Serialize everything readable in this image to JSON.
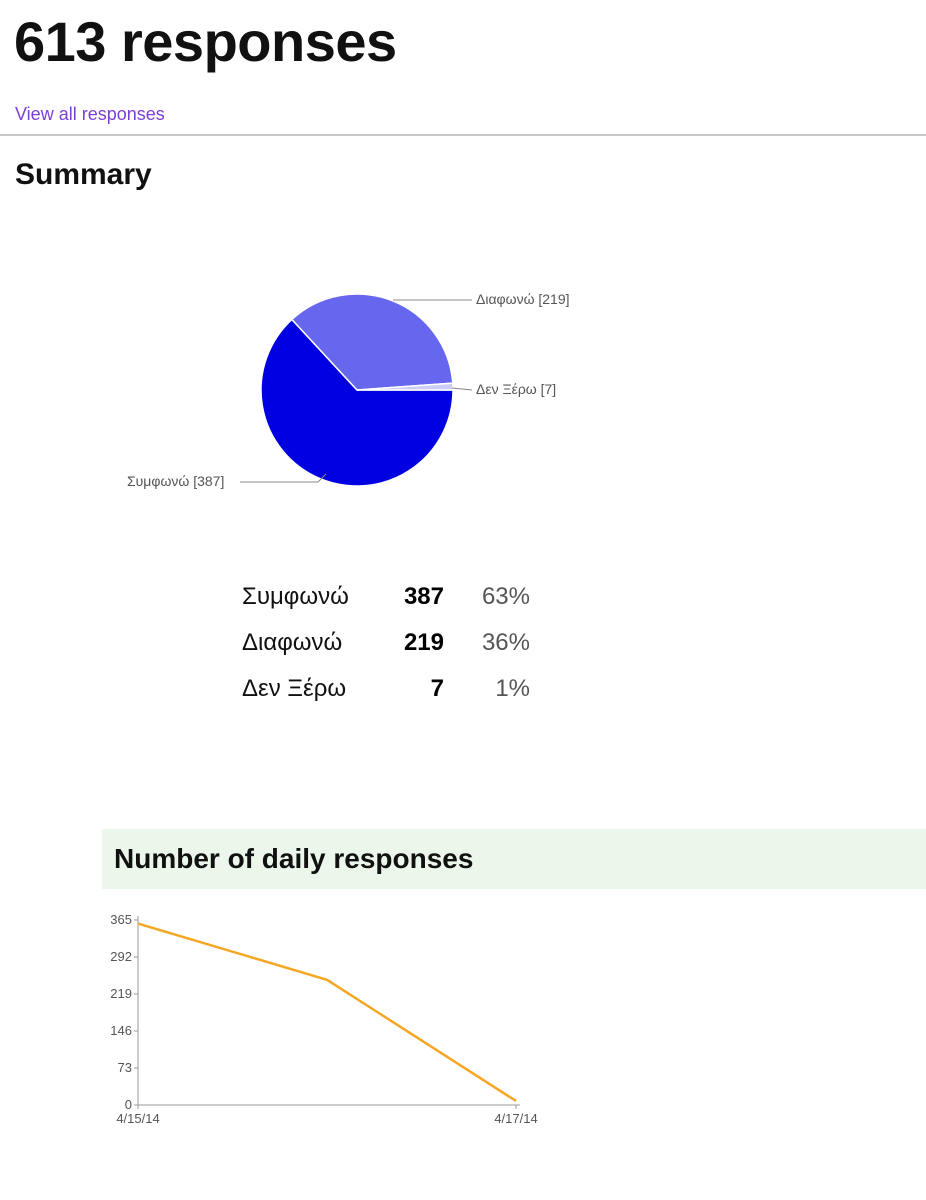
{
  "header": {
    "title": "613 responses",
    "view_all_link": "View all responses"
  },
  "summary": {
    "heading": "Summary"
  },
  "responses_table": [
    {
      "label": "Συμφωνώ",
      "count": "387",
      "percent": "63%"
    },
    {
      "label": "Διαφωνώ",
      "count": "219",
      "percent": "36%"
    },
    {
      "label": "Δεν Ξέρω",
      "count": "7",
      "percent": "1%"
    }
  ],
  "daily": {
    "heading": "Number of daily responses"
  },
  "chart_data": [
    {
      "type": "pie",
      "slices": [
        {
          "label": "Συμφωνώ [387]",
          "value": 387,
          "color": "#0000e0"
        },
        {
          "label": "Διαφωνώ [219]",
          "value": 219,
          "color": "#6666ee"
        },
        {
          "label": "Δεν Ξέρω [7]",
          "value": 7,
          "color": "#ccccf6"
        }
      ]
    },
    {
      "type": "line",
      "x": [
        "4/15/14",
        "4/16/14",
        "4/17/14"
      ],
      "x_tick_labels": [
        "4/15/14",
        "4/17/14"
      ],
      "y_ticks": [
        0,
        73,
        146,
        219,
        292,
        365
      ],
      "ylim": [
        0,
        365
      ],
      "series": [
        {
          "values": [
            358,
            247,
            8
          ],
          "color": "#f5a623"
        }
      ]
    }
  ]
}
